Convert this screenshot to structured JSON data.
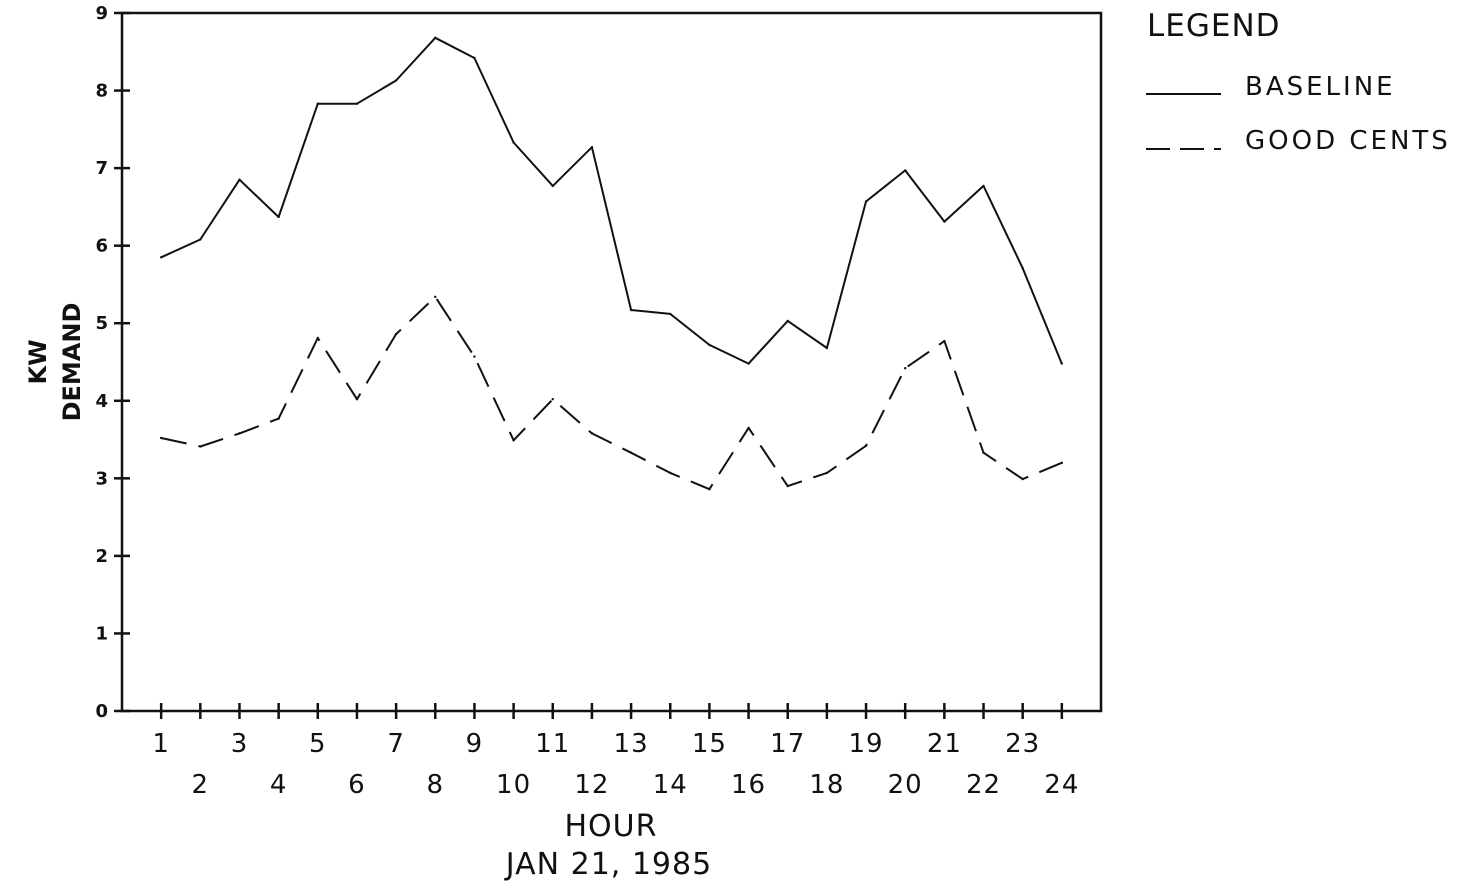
{
  "chart_data": {
    "type": "line",
    "x": [
      1,
      2,
      3,
      4,
      5,
      6,
      7,
      8,
      9,
      10,
      11,
      12,
      13,
      14,
      15,
      16,
      17,
      18,
      19,
      20,
      21,
      22,
      23,
      24
    ],
    "series": [
      {
        "name": "BASELINE",
        "style": "solid",
        "values": [
          5.85,
          6.08,
          6.85,
          6.37,
          7.83,
          7.83,
          8.13,
          8.68,
          8.42,
          7.33,
          6.77,
          7.27,
          5.17,
          5.12,
          4.72,
          4.48,
          5.03,
          4.68,
          6.57,
          6.97,
          6.31,
          6.77,
          5.71,
          4.48
        ]
      },
      {
        "name": "GOOD  CENTS",
        "style": "dashed",
        "values": [
          3.52,
          3.41,
          3.58,
          3.77,
          4.81,
          4.02,
          4.86,
          5.34,
          4.57,
          3.49,
          4.02,
          3.58,
          3.33,
          3.07,
          2.86,
          3.65,
          2.9,
          3.07,
          3.42,
          4.42,
          4.77,
          3.33,
          2.99,
          3.2
        ]
      }
    ],
    "xlabel": "HOUR",
    "subtitle": "JAN 21, 1985",
    "ylabel": [
      "KW",
      "DEMAND"
    ],
    "xlim": [
      0,
      25
    ],
    "ylim": [
      0,
      9
    ],
    "yticks": [
      0,
      1,
      2,
      3,
      4,
      5,
      6,
      7,
      8,
      9
    ],
    "xticks_top_row": [
      1,
      3,
      5,
      7,
      9,
      11,
      13,
      15,
      17,
      19,
      21,
      23
    ],
    "xticks_bottom_row": [
      2,
      4,
      6,
      8,
      10,
      12,
      14,
      16,
      18,
      20,
      22,
      24
    ],
    "grid": false,
    "legend": {
      "title": "LEGEND",
      "placement": "right",
      "entries": [
        "BASELINE",
        "GOOD  CENTS"
      ]
    }
  },
  "colors": {
    "ink": "#111111",
    "background": "#ffffff"
  }
}
